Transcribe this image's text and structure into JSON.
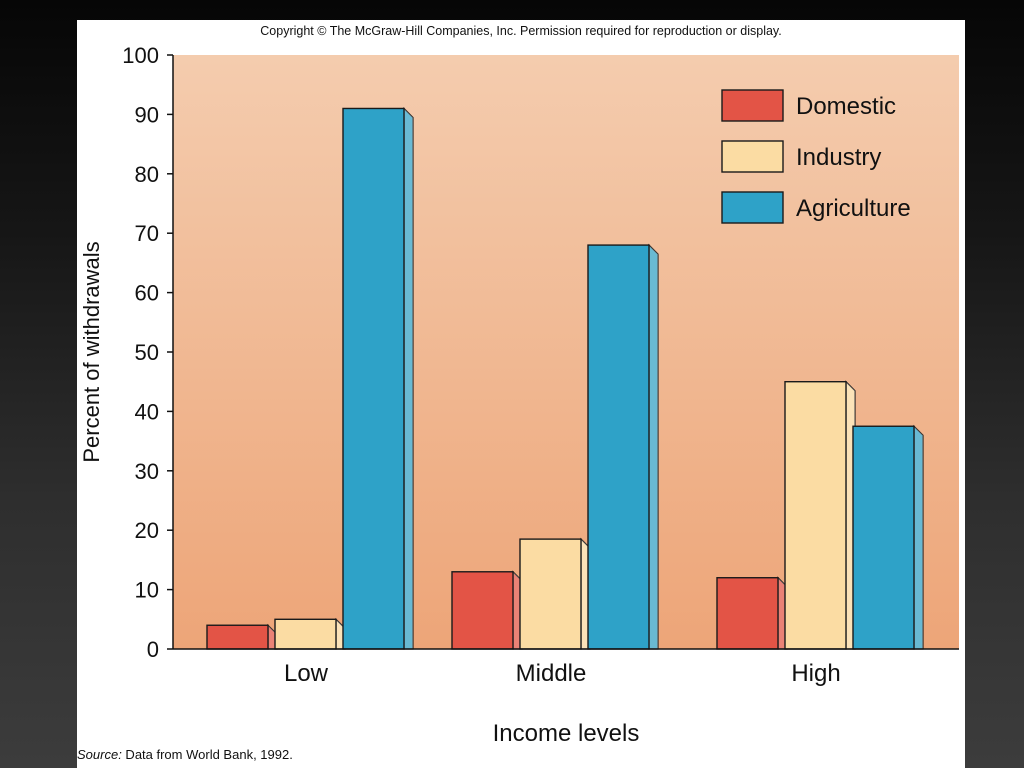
{
  "copyright": "Copyright © The McGraw-Hill Companies, Inc. Permission required for reproduction or display.",
  "source": {
    "label": "Source:",
    "text": " Data from World Bank, 1992."
  },
  "colors": {
    "Domestic": "#e35446",
    "Industry": "#fbdca3",
    "Agriculture": "#2ea2c8",
    "plot_top": "#f4ccae",
    "plot_bottom": "#eda578"
  },
  "chart_data": {
    "type": "bar",
    "title": "",
    "xlabel": "Income levels",
    "ylabel": "Percent of withdrawals",
    "categories": [
      "Low",
      "Middle",
      "High"
    ],
    "series": [
      {
        "name": "Domestic",
        "values": [
          4,
          13,
          12
        ]
      },
      {
        "name": "Industry",
        "values": [
          5,
          18.5,
          45
        ]
      },
      {
        "name": "Agriculture",
        "values": [
          91,
          68,
          37.5
        ]
      }
    ],
    "ylim": [
      0,
      100
    ],
    "yticks": [
      0,
      10,
      20,
      30,
      40,
      50,
      60,
      70,
      80,
      90,
      100
    ],
    "legend_position": "top-right",
    "grid": false
  }
}
